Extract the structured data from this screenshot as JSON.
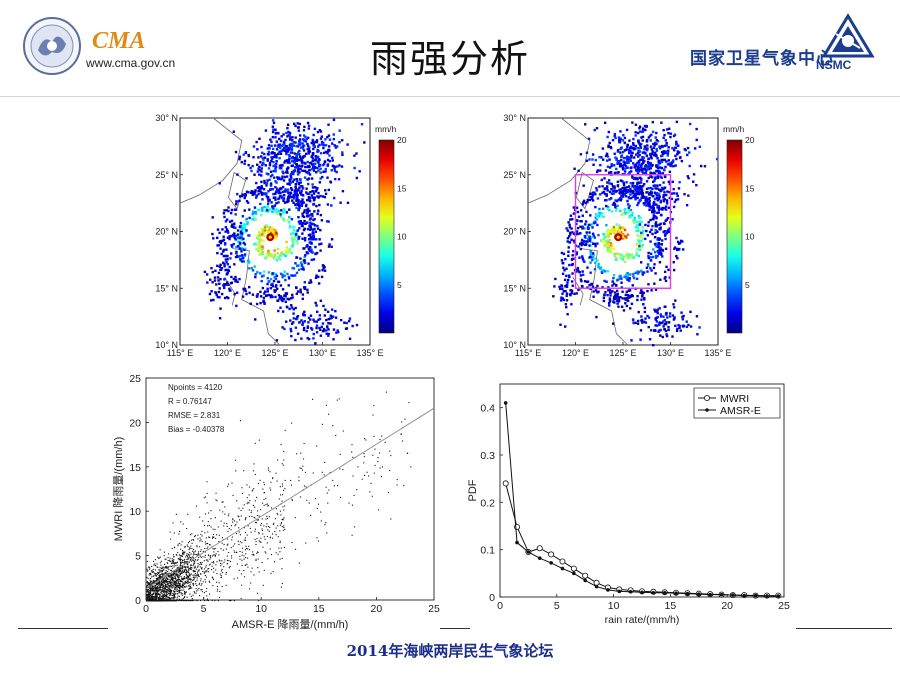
{
  "header": {
    "title": "雨强分析",
    "cma_logo_text": "CMA",
    "cma_url": "www.cma.gov.cn",
    "nsmc_name": "国家卫星气象中心",
    "nsmc_abbr": "NSMC"
  },
  "footer": {
    "text": "2014年海峡两岸民生气象论坛"
  },
  "colors": {
    "title_blue": "#1d2d8a",
    "cma_orange": "#e08a16",
    "nsmc_blue": "#1b3d8f",
    "box_magenta": "#e03ce0"
  },
  "chart_data": [
    {
      "type": "heatmap",
      "id": "map-left",
      "xticks": [
        "115° E",
        "120° E",
        "125° E",
        "130° E",
        "135° E"
      ],
      "yticks": [
        "30° N",
        "25° N",
        "20° N",
        "15° N",
        "10° N"
      ],
      "xlim": [
        115,
        135
      ],
      "ylim": [
        10,
        30
      ],
      "colorbar": {
        "unit": "mm/h",
        "min": 0,
        "max": 20,
        "ticks": [
          "20",
          "15",
          "10",
          "5"
        ]
      },
      "typhoon_center": [
        124.5,
        19.5
      ]
    },
    {
      "type": "heatmap",
      "id": "map-right",
      "xticks": [
        "115° E",
        "120° E",
        "125° E",
        "130° E",
        "135° E"
      ],
      "yticks": [
        "30° N",
        "25° N",
        "20° N",
        "15° N",
        "10° N"
      ],
      "xlim": [
        115,
        135
      ],
      "ylim": [
        10,
        30
      ],
      "colorbar": {
        "unit": "mm/h",
        "min": 0,
        "max": 20,
        "ticks": [
          "20",
          "15",
          "10",
          "5"
        ]
      },
      "typhoon_center": [
        124.5,
        19.5
      ],
      "box": {
        "lon": [
          120,
          130
        ],
        "lat": [
          15,
          25
        ]
      }
    },
    {
      "type": "scatter",
      "id": "scatter",
      "xlabel": "AMSR-E 降雨量/(mm/h)",
      "ylabel": "MWRI 降雨量/(mm/h)",
      "xlim": [
        0,
        25
      ],
      "ylim": [
        0,
        25
      ],
      "xticks": [
        0,
        5,
        10,
        15,
        20,
        25
      ],
      "yticks": [
        0,
        5,
        10,
        15,
        20,
        25
      ],
      "stats": [
        "Npoints = 4120",
        "R = 0.76147",
        "RMSE = 2.831",
        "Bias = -0.40378"
      ],
      "fit_line": [
        [
          0,
          1.3
        ],
        [
          25,
          21.6
        ]
      ],
      "npoints": 4120
    },
    {
      "type": "line",
      "id": "pdf",
      "xlabel": "rain rate/(mm/h)",
      "ylabel": "PDF",
      "xlim": [
        0,
        25
      ],
      "ylim": [
        0,
        0.45
      ],
      "xticks": [
        0,
        5,
        10,
        15,
        20,
        25
      ],
      "yticks": [
        0,
        0.1,
        0.2,
        0.3,
        0.4
      ],
      "legend": "top-right",
      "x": [
        0.5,
        1.5,
        2.5,
        3.5,
        4.5,
        5.5,
        6.5,
        7.5,
        8.5,
        9.5,
        10.5,
        11.5,
        12.5,
        13.5,
        14.5,
        15.5,
        16.5,
        17.5,
        18.5,
        19.5,
        20.5,
        21.5,
        22.5,
        23.5,
        24.5
      ],
      "series": [
        {
          "name": "MWRI",
          "marker": "open-circle",
          "values": [
            0.24,
            0.148,
            0.095,
            0.103,
            0.09,
            0.075,
            0.06,
            0.045,
            0.03,
            0.02,
            0.016,
            0.014,
            0.012,
            0.011,
            0.01,
            0.009,
            0.008,
            0.007,
            0.006,
            0.005,
            0.004,
            0.004,
            0.003,
            0.003,
            0.003
          ]
        },
        {
          "name": "AMSR-E",
          "marker": "filled-dot",
          "values": [
            0.41,
            0.115,
            0.095,
            0.082,
            0.072,
            0.06,
            0.05,
            0.035,
            0.022,
            0.015,
            0.012,
            0.011,
            0.01,
            0.009,
            0.009,
            0.008,
            0.007,
            0.006,
            0.005,
            0.005,
            0.004,
            0.003,
            0.003,
            0.002,
            0.002
          ]
        }
      ]
    }
  ]
}
